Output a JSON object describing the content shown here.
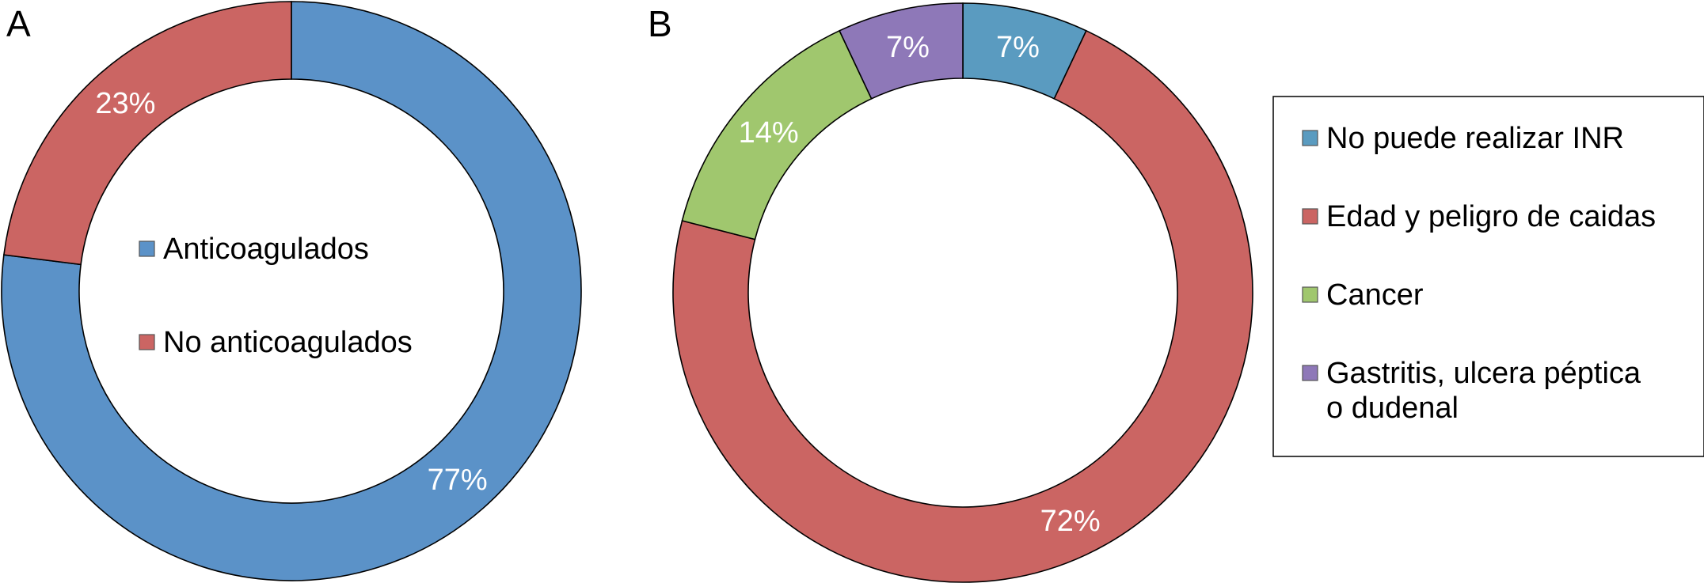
{
  "chart_data": [
    {
      "type": "pie",
      "variant": "donut",
      "panel_label": "A",
      "categories": [
        "Anticoagulados",
        "No anticoagulados"
      ],
      "values": [
        77,
        23
      ],
      "value_labels": [
        "77%",
        "23%"
      ],
      "colors": [
        "#5B92C8",
        "#CB6563"
      ],
      "legend": {
        "placement": "center",
        "entries": [
          "Anticoagulados",
          "No anticoagulados"
        ]
      }
    },
    {
      "type": "pie",
      "variant": "donut",
      "panel_label": "B",
      "categories": [
        "No puede realizar INR",
        "Edad y peligro de caidas",
        "Cancer",
        "Gastritis, ulcera péptica o dudenal"
      ],
      "values": [
        7,
        72,
        14,
        7
      ],
      "value_labels": [
        "7%",
        "72%",
        "14%",
        "7%"
      ],
      "colors": [
        "#5A9BC0",
        "#CB6563",
        "#A0C76E",
        "#8E78B8"
      ],
      "legend": {
        "placement": "right",
        "entries": [
          [
            "No puede realizar INR"
          ],
          [
            "Edad y peligro de caidas"
          ],
          [
            "Cancer"
          ],
          [
            "Gastritis, ulcera péptica",
            "o dudenal"
          ]
        ]
      }
    }
  ]
}
